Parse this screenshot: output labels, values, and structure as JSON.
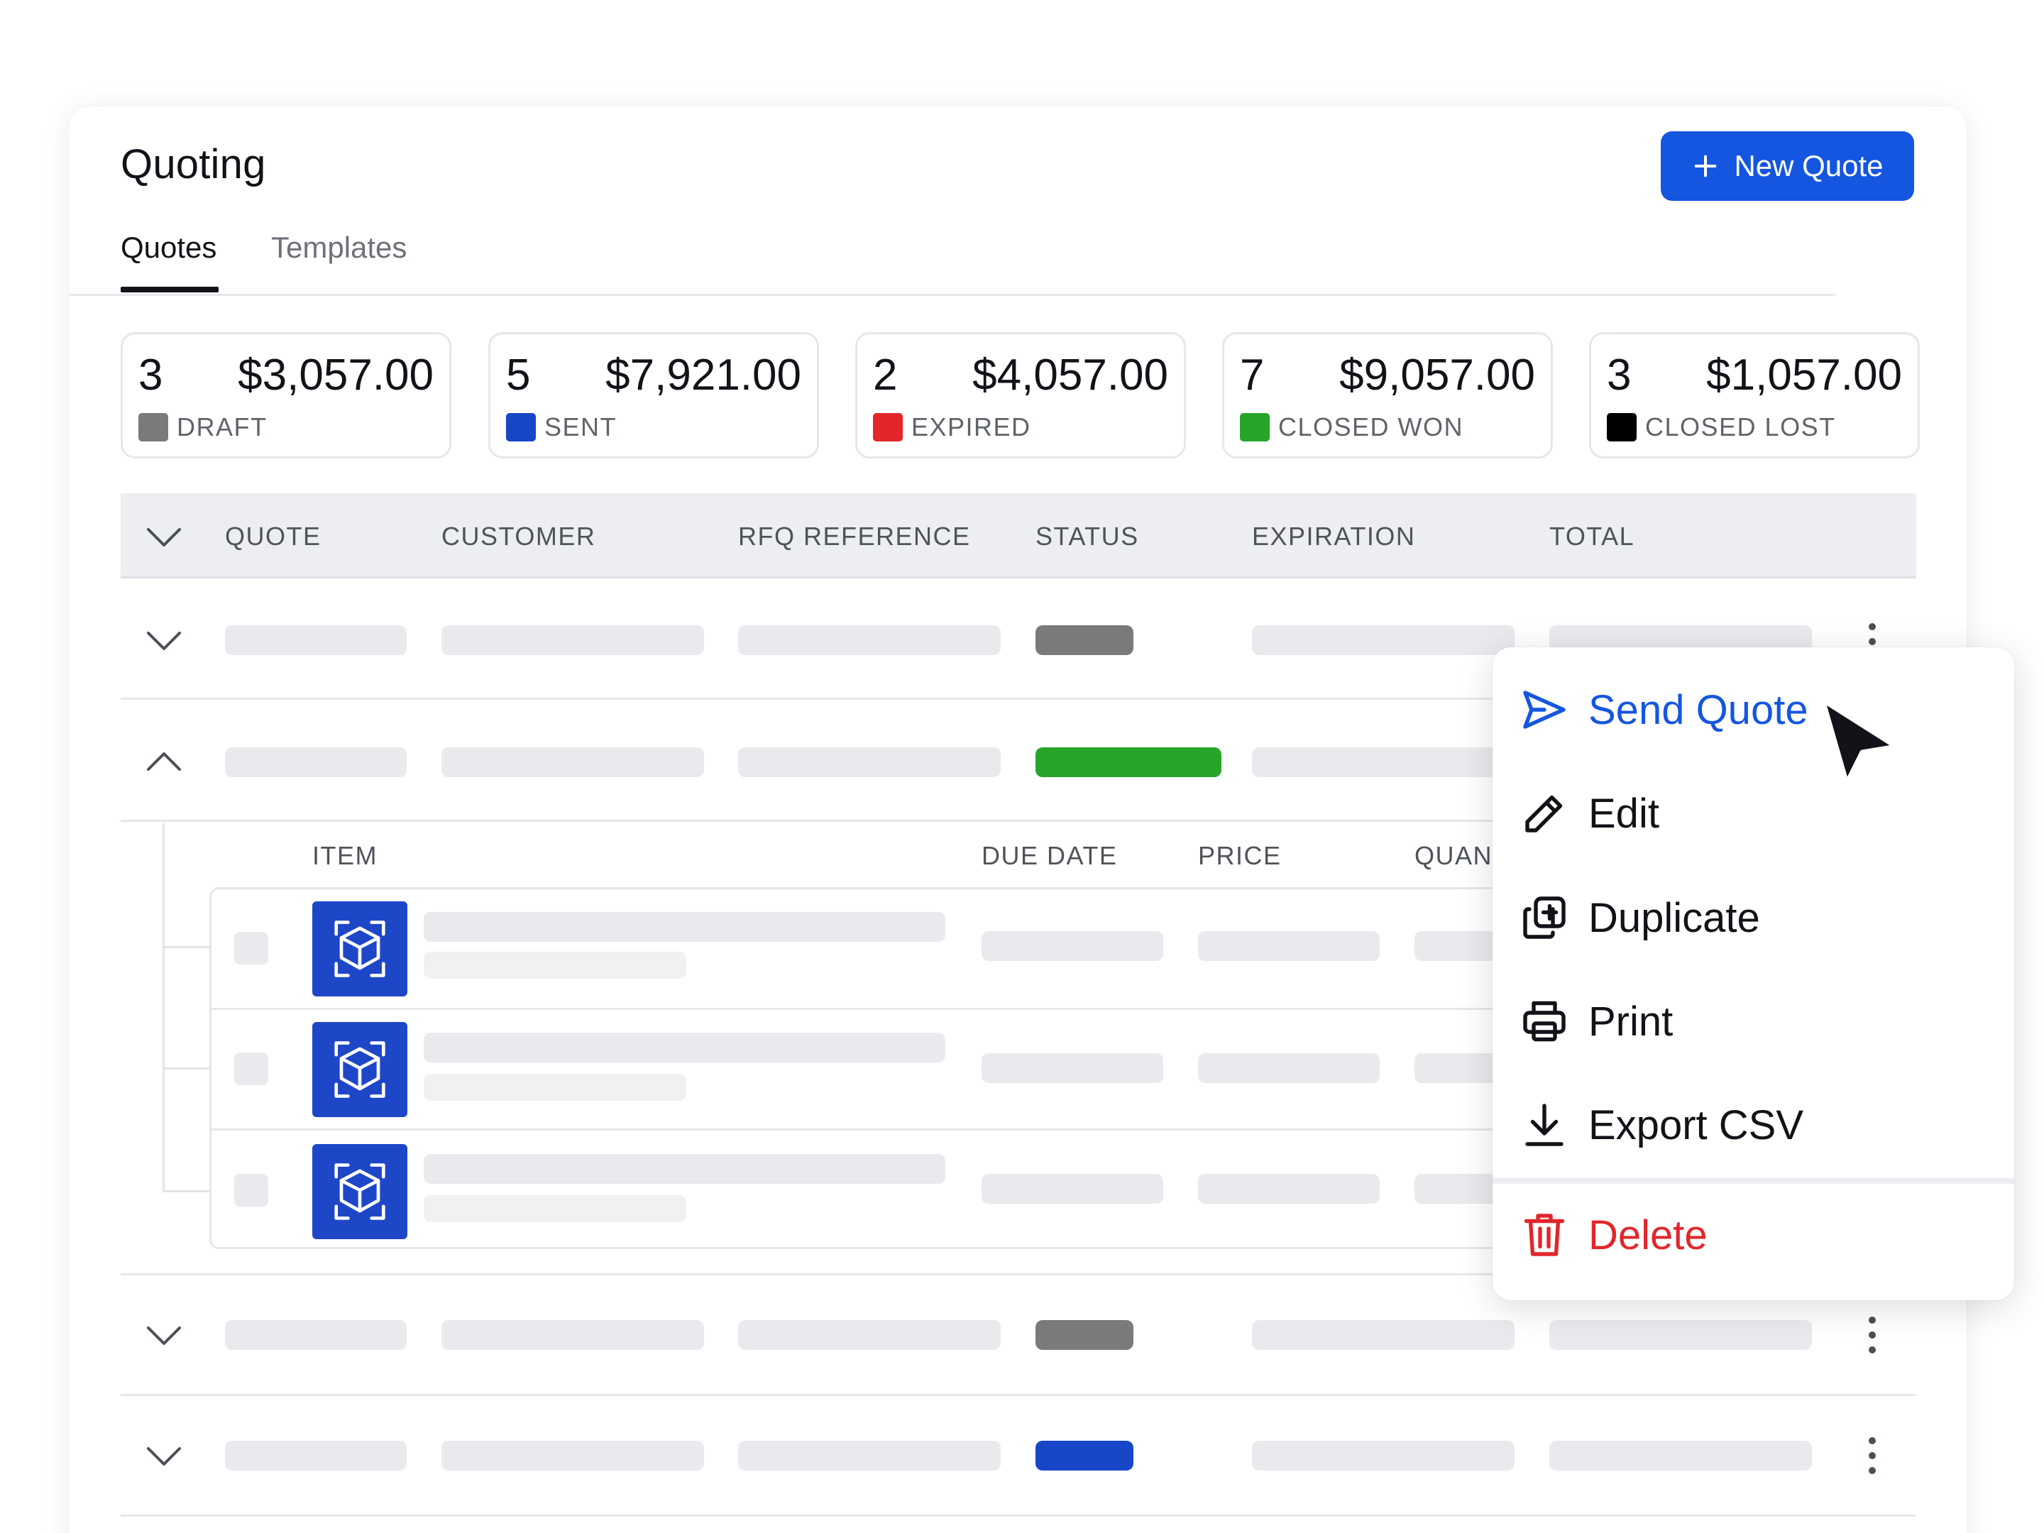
{
  "header": {
    "title": "Quoting",
    "new_quote_label": "New Quote"
  },
  "tabs": [
    {
      "label": "Quotes",
      "active": true
    },
    {
      "label": "Templates",
      "active": false
    }
  ],
  "stats": [
    {
      "count": "3",
      "amount": "$3,057.00",
      "label": "DRAFT",
      "color": "#7a7a7a"
    },
    {
      "count": "5",
      "amount": "$7,921.00",
      "label": "SENT",
      "color": "#1747c7"
    },
    {
      "count": "2",
      "amount": "$4,057.00",
      "label": "EXPIRED",
      "color": "#e2262b"
    },
    {
      "count": "7",
      "amount": "$9,057.00",
      "label": "CLOSED WON",
      "color": "#27a52a"
    },
    {
      "count": "3",
      "amount": "$1,057.00",
      "label": "CLOSED LOST",
      "color": "#000000"
    }
  ],
  "table": {
    "columns": [
      "QUOTE",
      "CUSTOMER",
      "RFQ REFERENCE",
      "STATUS",
      "EXPIRATION",
      "TOTAL"
    ],
    "rows": [
      {
        "status_color": "#7a7a7a",
        "expanded": false
      },
      {
        "status_color": "#27a52a",
        "expanded": true
      },
      {
        "status_color": "#7a7a7a",
        "expanded": false
      },
      {
        "status_color": "#1747c7",
        "expanded": false
      }
    ]
  },
  "subtable": {
    "columns": [
      "ITEM",
      "DUE DATE",
      "PRICE",
      "QUANT"
    ]
  },
  "context_menu": {
    "items": [
      {
        "label": "Send Quote",
        "icon": "send-icon",
        "color": "#1456e0"
      },
      {
        "label": "Edit",
        "icon": "pencil-icon",
        "color": "#111318"
      },
      {
        "label": "Duplicate",
        "icon": "duplicate-icon",
        "color": "#111318"
      },
      {
        "label": "Print",
        "icon": "printer-icon",
        "color": "#111318"
      },
      {
        "label": "Export CSV",
        "icon": "download-icon",
        "color": "#111318"
      },
      {
        "label": "Delete",
        "icon": "trash-icon",
        "color": "#e2262b"
      }
    ]
  }
}
